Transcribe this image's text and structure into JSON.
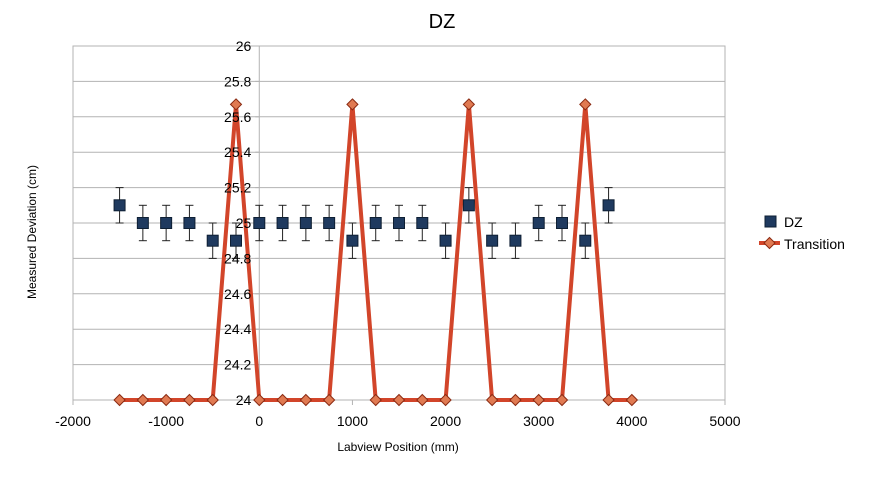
{
  "chart_data": {
    "type": "scatter",
    "title": "DZ",
    "xlabel": "Labview Position (mm)",
    "ylabel": "Measured Deviation (cm)",
    "xlim": [
      -2000,
      5000
    ],
    "ylim": [
      24,
      26
    ],
    "x_ticks": [
      -2000,
      -1000,
      0,
      1000,
      2000,
      3000,
      4000,
      5000
    ],
    "y_ticks": [
      24,
      24.2,
      24.4,
      24.6,
      24.8,
      25,
      25.2,
      25.4,
      25.6,
      25.8,
      26
    ],
    "grid": "horizontal",
    "legend_position": "right",
    "series": [
      {
        "name": "DZ",
        "kind": "scatter-errorbar",
        "color": "#1f3a5f",
        "error": 0.1,
        "x": [
          -1500,
          -1250,
          -1000,
          -750,
          -500,
          -250,
          0,
          250,
          500,
          750,
          1000,
          1250,
          1500,
          1750,
          2000,
          2250,
          2500,
          2750,
          3000,
          3250,
          3500,
          3750
        ],
        "y": [
          25.1,
          25.0,
          25.0,
          25.0,
          24.9,
          24.9,
          25.0,
          25.0,
          25.0,
          25.0,
          24.9,
          25.0,
          25.0,
          25.0,
          24.9,
          25.1,
          24.9,
          24.9,
          25.0,
          25.0,
          24.9,
          25.1
        ]
      },
      {
        "name": "Transition",
        "kind": "line-marker",
        "color": "#d2452a",
        "x": [
          -1500,
          -1250,
          -1000,
          -750,
          -500,
          -250,
          0,
          250,
          500,
          750,
          1000,
          1250,
          1500,
          1750,
          2000,
          2250,
          2500,
          2750,
          3000,
          3250,
          3500,
          3750,
          4000
        ],
        "y": [
          24,
          24,
          24,
          24,
          24,
          25.67,
          24,
          24,
          24,
          24,
          25.67,
          24,
          24,
          24,
          24,
          25.67,
          24,
          24,
          24,
          24,
          25.67,
          24,
          24
        ]
      }
    ]
  }
}
